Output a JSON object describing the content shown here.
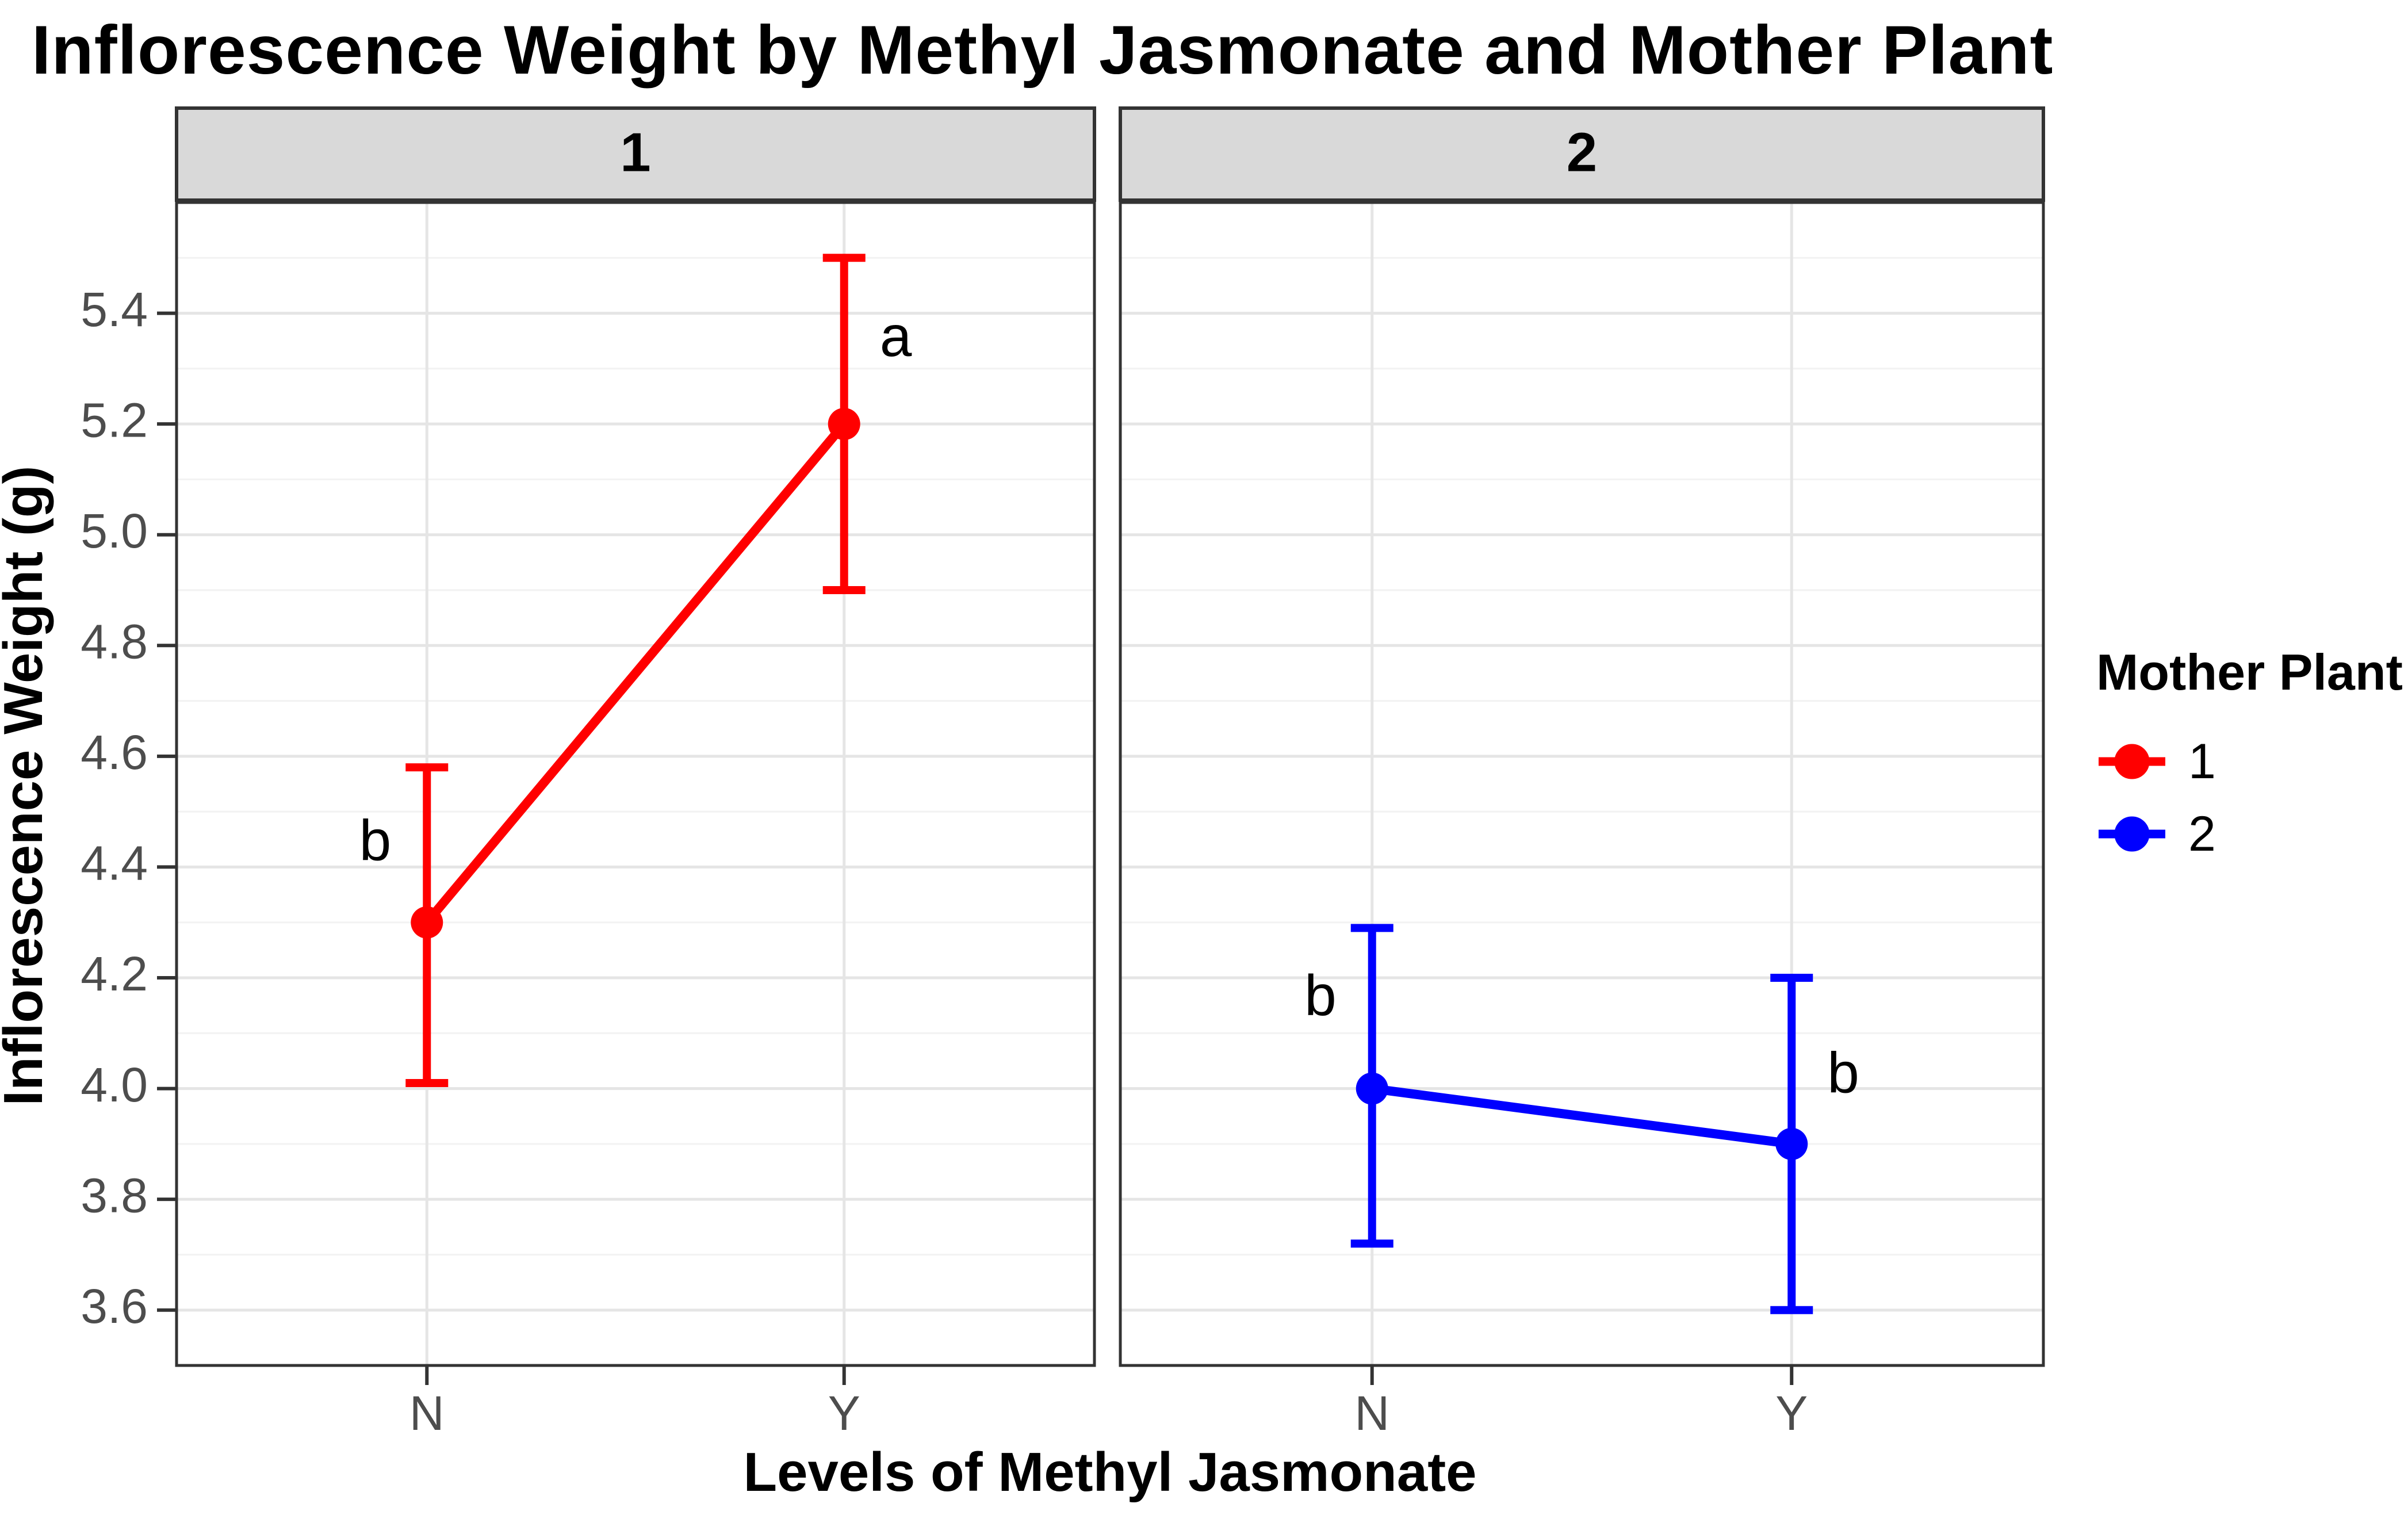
{
  "title": "Inflorescence Weight by Methyl Jasmonate and Mother Plant",
  "x_axis_title": "Levels of Methyl Jasmonate",
  "y_axis_title": "Inflorescence Weight (g)",
  "legend": {
    "title": "Mother Plant",
    "items": [
      {
        "label": "1",
        "color": "#FF0000"
      },
      {
        "label": "2",
        "color": "#0000FF"
      }
    ]
  },
  "colors": {
    "series_red": "#FF0000",
    "series_blue": "#0000FF",
    "panel_background": "#FFFFFF",
    "grid_major": "#E5E5E5",
    "grid_minor": "#F2F2F2",
    "panel_border": "#333333",
    "strip_fill": "#D9D9D9",
    "strip_border": "#333333",
    "axis_text": "#4D4D4D",
    "tick_mark": "#333333",
    "annotation_text": "#000000"
  },
  "chart_data": {
    "type": "line",
    "title": "Inflorescence Weight by Methyl Jasmonate and Mother Plant",
    "xlabel": "Levels of Methyl Jasmonate",
    "ylabel": "Inflorescence Weight (g)",
    "facet_variable": "Mother Plant",
    "x_categories": [
      "N",
      "Y"
    ],
    "ylim": [
      3.5,
      5.6
    ],
    "y_ticks": [
      3.6,
      3.8,
      4.0,
      4.2,
      4.4,
      4.6,
      4.8,
      5.0,
      5.2,
      5.4
    ],
    "y_minor_ticks": [
      3.7,
      3.9,
      4.1,
      4.3,
      4.5,
      4.7,
      4.9,
      5.1,
      5.3,
      5.5
    ],
    "grid": "on",
    "legend_position": "right",
    "facets": [
      {
        "label": "1",
        "series_name": "1",
        "color": "#FF0000",
        "points": [
          {
            "x": "N",
            "mean": 4.3,
            "lower": 4.01,
            "upper": 4.58,
            "sig": "b",
            "sig_side": "left",
            "sig_y": 4.44
          },
          {
            "x": "Y",
            "mean": 5.2,
            "lower": 4.9,
            "upper": 5.5,
            "sig": "a",
            "sig_side": "right",
            "sig_y": 5.35
          }
        ]
      },
      {
        "label": "2",
        "series_name": "2",
        "color": "#0000FF",
        "points": [
          {
            "x": "N",
            "mean": 4.0,
            "lower": 3.72,
            "upper": 4.29,
            "sig": "b",
            "sig_side": "left",
            "sig_y": 4.16
          },
          {
            "x": "Y",
            "mean": 3.9,
            "lower": 3.6,
            "upper": 4.2,
            "sig": "b",
            "sig_side": "right",
            "sig_y": 4.02
          }
        ]
      }
    ]
  }
}
